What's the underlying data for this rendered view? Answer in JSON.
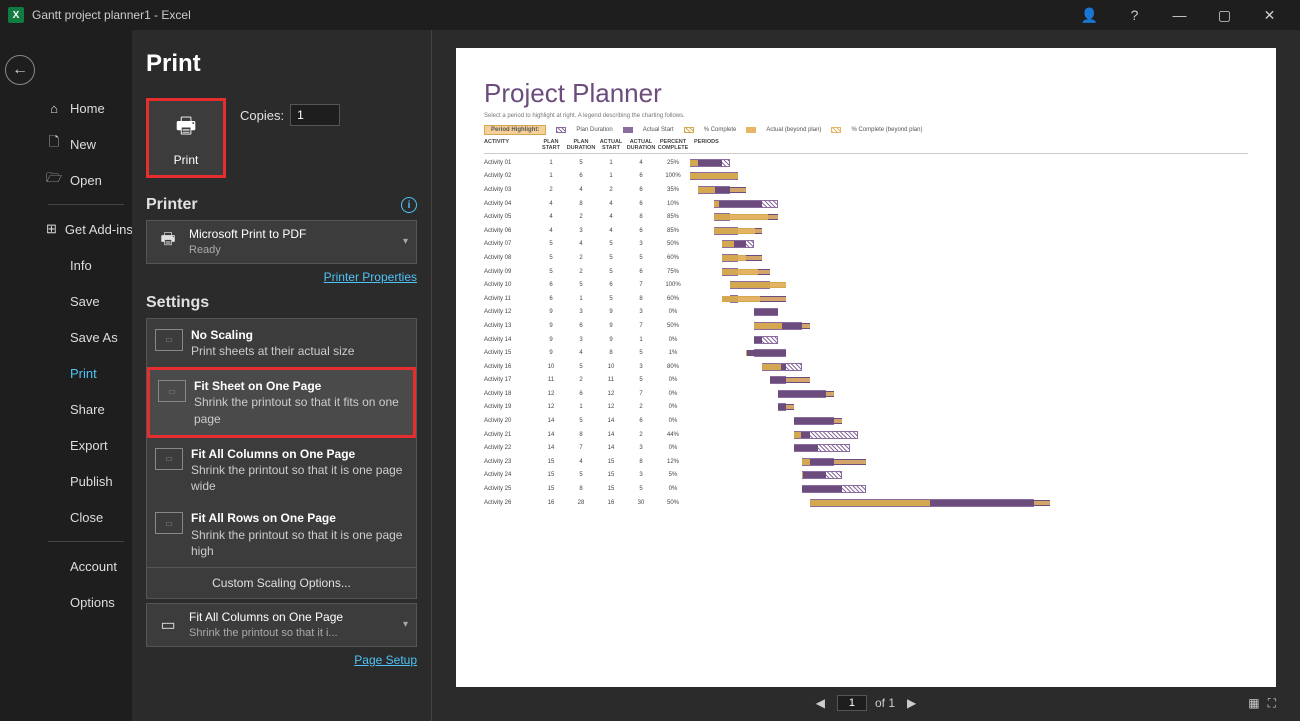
{
  "titlebar": {
    "title": "Gantt project planner1  -  Excel"
  },
  "sidebar": {
    "items": [
      {
        "icon": "⌂",
        "label": "Home"
      },
      {
        "icon": "🗋",
        "label": "New"
      },
      {
        "icon": "🗁",
        "label": "Open"
      },
      {
        "icon": "⊞",
        "label": "Get Add-ins"
      },
      {
        "icon": "",
        "label": "Info"
      },
      {
        "icon": "",
        "label": "Save"
      },
      {
        "icon": "",
        "label": "Save As"
      },
      {
        "icon": "",
        "label": "Print"
      },
      {
        "icon": "",
        "label": "Share"
      },
      {
        "icon": "",
        "label": "Export"
      },
      {
        "icon": "",
        "label": "Publish"
      },
      {
        "icon": "",
        "label": "Close"
      },
      {
        "icon": "",
        "label": "Account"
      },
      {
        "icon": "",
        "label": "Options"
      }
    ],
    "dividers_after": [
      2,
      11
    ]
  },
  "print": {
    "heading": "Print",
    "button_label": "Print",
    "copies_label": "Copies:",
    "copies_value": "1",
    "printer_heading": "Printer",
    "printer_name": "Microsoft Print to PDF",
    "printer_status": "Ready",
    "printer_props_link": "Printer Properties",
    "settings_heading": "Settings",
    "scaling": {
      "options": [
        {
          "title": "No Scaling",
          "sub": "Print sheets at their actual size"
        },
        {
          "title": "Fit Sheet on One Page",
          "sub": "Shrink the printout so that it fits on one page"
        },
        {
          "title": "Fit All Columns on One Page",
          "sub": "Shrink the printout so that it is one page wide"
        },
        {
          "title": "Fit All Rows on One Page",
          "sub": "Shrink the printout so that it is one page high"
        }
      ],
      "custom_label": "Custom Scaling Options...",
      "selected_index": 1
    },
    "current_scaling": {
      "title": "Fit All Columns on One Page",
      "sub": "Shrink the printout so that it i..."
    },
    "page_setup_link": "Page Setup"
  },
  "pager": {
    "current": "1",
    "of_label": "of 1"
  },
  "preview": {
    "title": "Project Planner",
    "subtitle": "Select a period to highlight at right. A legend describing the charting follows.",
    "period_highlight_label": "Period Highlight:",
    "legend": [
      {
        "label": "Plan Duration",
        "type": "hatch",
        "color": "#8a6d9e"
      },
      {
        "label": "Actual Start",
        "type": "solid",
        "color": "#8a6d9e"
      },
      {
        "label": "% Complete",
        "type": "hatch",
        "color": "#d4a850"
      },
      {
        "label": "Actual (beyond plan)",
        "type": "solid",
        "color": "#e6b566"
      },
      {
        "label": "% Complete (beyond plan)",
        "type": "hatch",
        "color": "#e6b566"
      }
    ],
    "columns": [
      "ACTIVITY",
      "PLAN START",
      "PLAN DURATION",
      "ACTUAL START",
      "ACTUAL DURATION",
      "PERCENT COMPLETE",
      "PERIODS"
    ],
    "period_count": 60,
    "colors": {
      "plan_hatch": "#8a6d9e",
      "actual": "#6b4c7c",
      "complete": "#d4a850",
      "beyond": "#e6b566"
    },
    "rows": [
      {
        "act": "Activity 01",
        "ps": 1,
        "pd": 5,
        "as": 1,
        "ad": 4,
        "pc": "25%"
      },
      {
        "act": "Activity 02",
        "ps": 1,
        "pd": 6,
        "as": 1,
        "ad": 6,
        "pc": "100%"
      },
      {
        "act": "Activity 03",
        "ps": 2,
        "pd": 4,
        "as": 2,
        "ad": 6,
        "pc": "35%"
      },
      {
        "act": "Activity 04",
        "ps": 4,
        "pd": 8,
        "as": 4,
        "ad": 6,
        "pc": "10%"
      },
      {
        "act": "Activity 05",
        "ps": 4,
        "pd": 2,
        "as": 4,
        "ad": 8,
        "pc": "85%"
      },
      {
        "act": "Activity 06",
        "ps": 4,
        "pd": 3,
        "as": 4,
        "ad": 6,
        "pc": "85%"
      },
      {
        "act": "Activity 07",
        "ps": 5,
        "pd": 4,
        "as": 5,
        "ad": 3,
        "pc": "50%"
      },
      {
        "act": "Activity 08",
        "ps": 5,
        "pd": 2,
        "as": 5,
        "ad": 5,
        "pc": "60%"
      },
      {
        "act": "Activity 09",
        "ps": 5,
        "pd": 2,
        "as": 5,
        "ad": 6,
        "pc": "75%"
      },
      {
        "act": "Activity 10",
        "ps": 6,
        "pd": 5,
        "as": 6,
        "ad": 7,
        "pc": "100%"
      },
      {
        "act": "Activity 11",
        "ps": 6,
        "pd": 1,
        "as": 5,
        "ad": 8,
        "pc": "60%"
      },
      {
        "act": "Activity 12",
        "ps": 9,
        "pd": 3,
        "as": 9,
        "ad": 3,
        "pc": "0%"
      },
      {
        "act": "Activity 13",
        "ps": 9,
        "pd": 6,
        "as": 9,
        "ad": 7,
        "pc": "50%"
      },
      {
        "act": "Activity 14",
        "ps": 9,
        "pd": 3,
        "as": 9,
        "ad": 1,
        "pc": "0%"
      },
      {
        "act": "Activity 15",
        "ps": 9,
        "pd": 4,
        "as": 8,
        "ad": 5,
        "pc": "1%"
      },
      {
        "act": "Activity 16",
        "ps": 10,
        "pd": 5,
        "as": 10,
        "ad": 3,
        "pc": "80%"
      },
      {
        "act": "Activity 17",
        "ps": 11,
        "pd": 2,
        "as": 11,
        "ad": 5,
        "pc": "0%"
      },
      {
        "act": "Activity 18",
        "ps": 12,
        "pd": 6,
        "as": 12,
        "ad": 7,
        "pc": "0%"
      },
      {
        "act": "Activity 19",
        "ps": 12,
        "pd": 1,
        "as": 12,
        "ad": 2,
        "pc": "0%"
      },
      {
        "act": "Activity 20",
        "ps": 14,
        "pd": 5,
        "as": 14,
        "ad": 6,
        "pc": "0%"
      },
      {
        "act": "Activity 21",
        "ps": 14,
        "pd": 8,
        "as": 14,
        "ad": 2,
        "pc": "44%"
      },
      {
        "act": "Activity 22",
        "ps": 14,
        "pd": 7,
        "as": 14,
        "ad": 3,
        "pc": "0%"
      },
      {
        "act": "Activity 23",
        "ps": 15,
        "pd": 4,
        "as": 15,
        "ad": 8,
        "pc": "12%"
      },
      {
        "act": "Activity 24",
        "ps": 15,
        "pd": 5,
        "as": 15,
        "ad": 3,
        "pc": "5%"
      },
      {
        "act": "Activity 25",
        "ps": 15,
        "pd": 8,
        "as": 15,
        "ad": 5,
        "pc": "0%"
      },
      {
        "act": "Activity 26",
        "ps": 16,
        "pd": 28,
        "as": 16,
        "ad": 30,
        "pc": "50%"
      }
    ]
  }
}
